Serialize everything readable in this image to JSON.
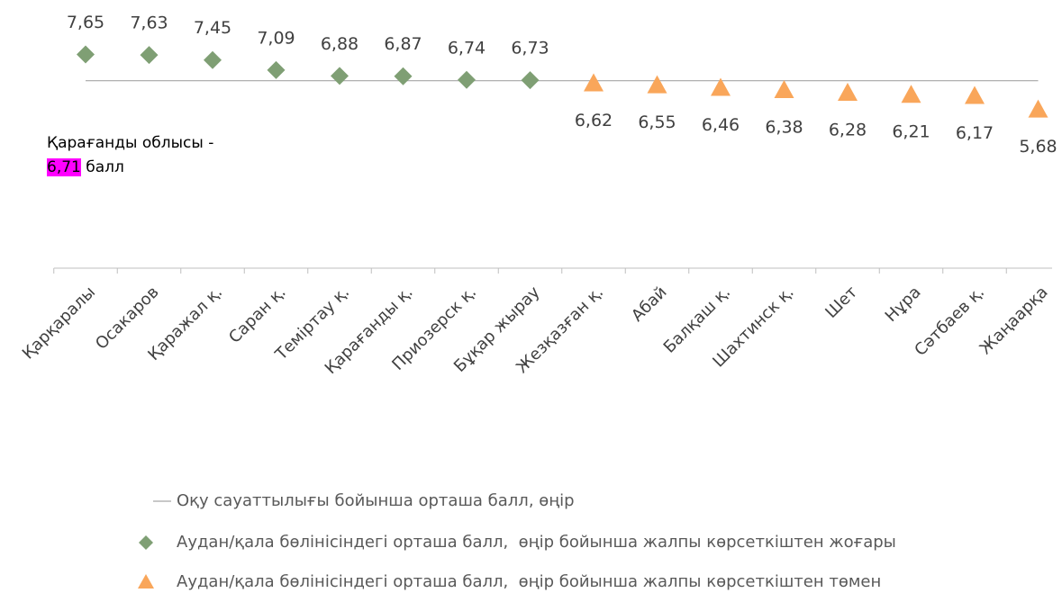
{
  "chart_data": {
    "type": "dot",
    "categories": [
      "Қарқаралы",
      "Осакаров",
      "Қаражал қ.",
      "Саран қ.",
      "Теміртау қ.",
      "Қарағанды қ.",
      "Приозерск қ.",
      "Бұқар жырау",
      "Жезқазған қ.",
      "Абай",
      "Балқаш қ.",
      "Шахтинск қ.",
      "Шет",
      "Нұра",
      "Сәтбаев қ.",
      "Жаңаарқа"
    ],
    "reference": {
      "name": "Оқу сауаттылығы бойынша орташа балл, өңір",
      "color": "#a6a6a6",
      "value": 6.71,
      "value_label": "6,71"
    },
    "annotation": {
      "prefix": "Қарағанды облысы -",
      "suffix": "балл",
      "highlight": "#ff00ff"
    },
    "series": [
      {
        "name": "Аудан/қала бөлінісіндегі орташа балл,  өңір бойынша жалпы көрсеткіштен жоғары",
        "marker": "diamond",
        "color": "#7f9f74",
        "label_position": "above",
        "values": [
          7.65,
          7.63,
          7.45,
          7.09,
          6.88,
          6.87,
          6.74,
          6.73,
          null,
          null,
          null,
          null,
          null,
          null,
          null,
          null
        ],
        "value_labels": [
          "7,65",
          "7,63",
          "7,45",
          "7,09",
          "6,88",
          "6,87",
          "6,74",
          "6,73",
          null,
          null,
          null,
          null,
          null,
          null,
          null,
          null
        ]
      },
      {
        "name": "Аудан/қала бөлінісіндегі орташа балл,  өңір бойынша жалпы көрсеткіштен төмен",
        "marker": "triangle",
        "color": "#f9a65a",
        "label_position": "below",
        "values": [
          null,
          null,
          null,
          null,
          null,
          null,
          null,
          null,
          6.62,
          6.55,
          6.46,
          6.38,
          6.28,
          6.21,
          6.17,
          5.68
        ],
        "value_labels": [
          null,
          null,
          null,
          null,
          null,
          null,
          null,
          null,
          "6,62",
          "6,55",
          "6,46",
          "6,38",
          "6,28",
          "6,21",
          "6,17",
          "5,68"
        ]
      }
    ],
    "ylim": [
      0,
      9.6
    ]
  }
}
